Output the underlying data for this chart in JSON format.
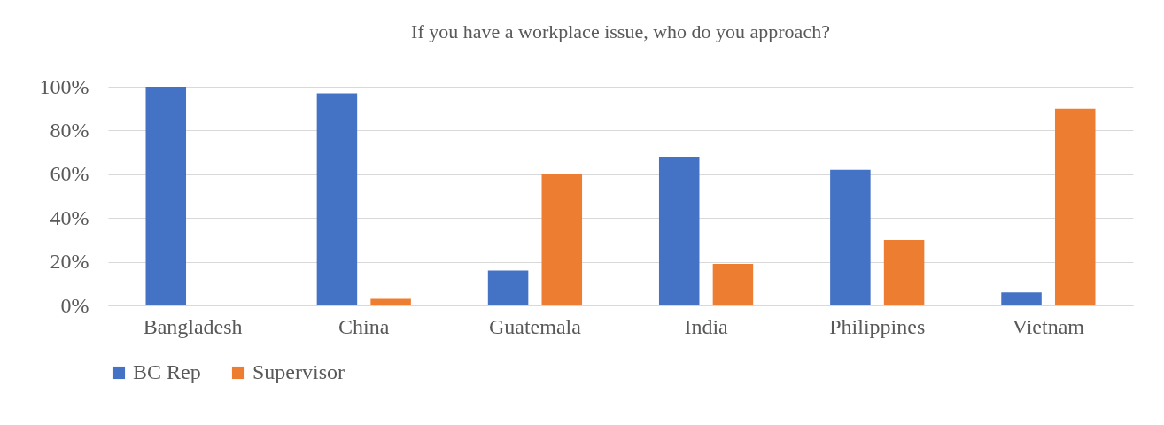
{
  "chart_data": {
    "type": "bar",
    "title": "If you have a workplace issue, who do you approach?",
    "categories": [
      "Bangladesh",
      "China",
      "Guatemala",
      "India",
      "Philippines",
      "Vietnam"
    ],
    "series": [
      {
        "name": "BC Rep",
        "color": "#4472c4",
        "values": [
          100,
          97,
          16,
          68,
          62,
          6
        ]
      },
      {
        "name": "Supervisor",
        "color": "#ed7d31",
        "values": [
          0,
          3,
          60,
          19,
          30,
          90
        ]
      }
    ],
    "ylim": [
      0,
      100
    ],
    "yticks": [
      {
        "value": 0,
        "label": "0%"
      },
      {
        "value": 20,
        "label": "20%"
      },
      {
        "value": 40,
        "label": "40%"
      },
      {
        "value": 60,
        "label": "60%"
      },
      {
        "value": 80,
        "label": "80%"
      },
      {
        "value": 100,
        "label": "100%"
      }
    ],
    "grid": "y",
    "legend": "bottom"
  }
}
